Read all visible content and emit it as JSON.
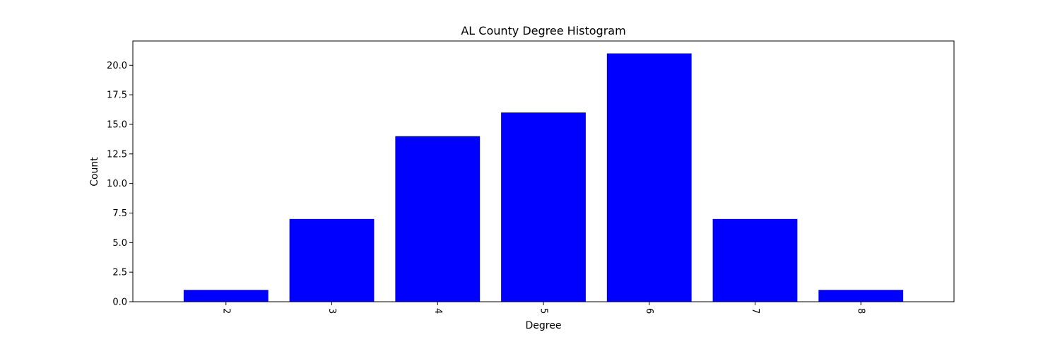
{
  "chart_data": {
    "type": "bar",
    "title": "AL County Degree Histogram",
    "xlabel": "Degree",
    "ylabel": "Count",
    "categories": [
      "2",
      "3",
      "4",
      "5",
      "6",
      "7",
      "8"
    ],
    "values": [
      1,
      7,
      14,
      16,
      21,
      7,
      1
    ],
    "ylim": [
      0,
      22.05
    ],
    "yticks": [
      0.0,
      2.5,
      5.0,
      7.5,
      10.0,
      12.5,
      15.0,
      17.5,
      20.0
    ],
    "ytick_labels": [
      "0.0",
      "2.5",
      "5.0",
      "7.5",
      "10.0",
      "12.5",
      "15.0",
      "17.5",
      "20.0"
    ],
    "bar_color": "#0000ff",
    "grid": false,
    "legend": "none",
    "xtick_rotation_deg": -90
  }
}
